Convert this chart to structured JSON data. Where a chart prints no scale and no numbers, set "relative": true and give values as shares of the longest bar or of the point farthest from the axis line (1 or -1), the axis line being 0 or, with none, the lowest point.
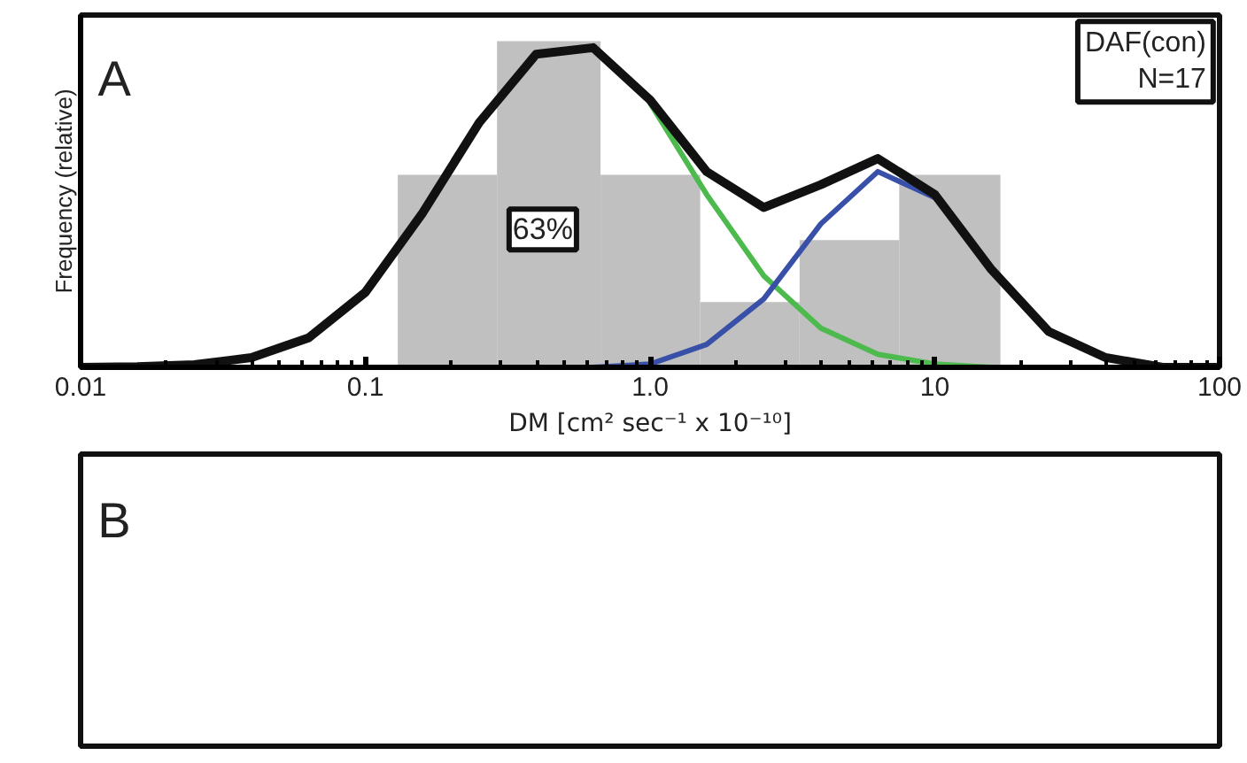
{
  "chart_data": [
    {
      "type": "histogram",
      "xlabel": "DM [cm² sec⁻¹ x 10⁻¹⁰]",
      "ylabel": "Frequency (relative)",
      "relative": true,
      "log": "x",
      "bins": [
        0.13,
        0.29,
        0.67,
        1.5,
        3.35,
        7.5,
        17
      ],
      "values": [
        0.59,
        1,
        0.59,
        0.2,
        0.39,
        0.59
      ],
      "color": "#c0c0c0",
      "xlim": [
        0.01,
        100
      ],
      "xticks": [
        0.01,
        0.1,
        {
          "value": 1,
          "label": "1.0"
        },
        10,
        100
      ],
      "grid": false,
      "annotations": [
        "A",
        "63%",
        "DAF(con)\nN=17"
      ],
      "series": [
        {
          "type": "line",
          "color": "#4cba4c",
          "x": [
            1,
            1.58,
            2.51,
            3.98,
            6.31,
            10,
            15.8
          ],
          "values": [
            0.81,
            0.53,
            0.28,
            0.12,
            0.04,
            0.01,
            0.0
          ]
        },
        {
          "type": "line",
          "color": "#3850a8",
          "x": [
            0.631,
            1,
            1.58,
            2.51,
            3.98,
            6.31,
            10
          ],
          "values": [
            0.0,
            0.01,
            0.07,
            0.21,
            0.44,
            0.6,
            0.52
          ]
        },
        {
          "type": "line",
          "color": "#111111",
          "x": [
            0.01,
            0.0158,
            0.0251,
            0.0398,
            0.0631,
            0.1,
            0.158,
            0.251,
            0.398,
            0.631,
            1,
            1.58,
            2.51,
            3.98,
            6.31,
            10,
            15.8,
            25.1,
            39.8,
            63.1,
            100
          ],
          "values": [
            0.0,
            0.002,
            0.008,
            0.03,
            0.09,
            0.23,
            0.47,
            0.75,
            0.96,
            0.98,
            0.82,
            0.6,
            0.49,
            0.56,
            0.64,
            0.53,
            0.3,
            0.11,
            0.03,
            0.0,
            0.0
          ]
        }
      ]
    },
    {
      "type": "other",
      "annotations": [
        "B"
      ]
    }
  ]
}
